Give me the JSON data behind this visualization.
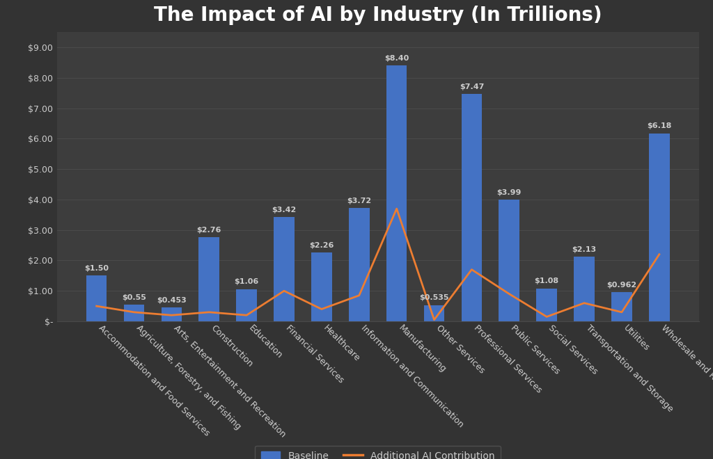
{
  "title": "The Impact of AI by Industry (In Trillions)",
  "categories": [
    "Accommodation and Food Services",
    "Agriculture, Forestry, and Fishing",
    "Arts, Entertainment and Recreation",
    "Construction",
    "Education",
    "Financial Services",
    "Healthcare",
    "Information and Communication",
    "Manufacturing",
    "Other Services",
    "Professional Services",
    "Public Services",
    "Social Services",
    "Transportation and Storage",
    "Utilities",
    "Wholesale and Retail"
  ],
  "bar_labels": [
    "$1.50",
    "$0.55",
    "$0.453",
    "$2.76",
    "$1.06",
    "$3.42",
    "$2.26",
    "$3.72",
    "$8.40",
    "$0.535",
    "$7.47",
    "$3.99",
    "$1.08",
    "$2.13",
    "$0.962",
    "$6.18"
  ],
  "baseline": [
    1.5,
    0.55,
    0.453,
    2.76,
    1.06,
    3.42,
    2.26,
    3.72,
    8.4,
    0.535,
    7.47,
    3.99,
    1.08,
    2.13,
    0.962,
    6.18
  ],
  "ai_contribution": [
    0.5,
    0.3,
    0.2,
    0.3,
    0.2,
    1.0,
    0.4,
    0.85,
    3.7,
    0.05,
    1.7,
    0.9,
    0.15,
    0.6,
    0.3,
    2.2
  ],
  "bar_color": "#4472C4",
  "line_color": "#ED7D31",
  "background_color": "#333333",
  "axes_background_color": "#3d3d3d",
  "grid_color": "#4a4a4a",
  "text_color": "#cccccc",
  "title_color": "#ffffff",
  "title_fontsize": 20,
  "label_fontsize": 8,
  "tick_fontsize": 9,
  "ylim": [
    0,
    9.5
  ],
  "yticks": [
    0,
    1.0,
    2.0,
    3.0,
    4.0,
    5.0,
    6.0,
    7.0,
    8.0,
    9.0
  ],
  "ytick_labels": [
    "$-",
    "$1.00",
    "$2.00",
    "$3.00",
    "$4.00",
    "$5.00",
    "$6.00",
    "$7.00",
    "$8.00",
    "$9.00"
  ],
  "legend_baseline": "Baseline",
  "legend_ai": "Additional AI Contribution"
}
